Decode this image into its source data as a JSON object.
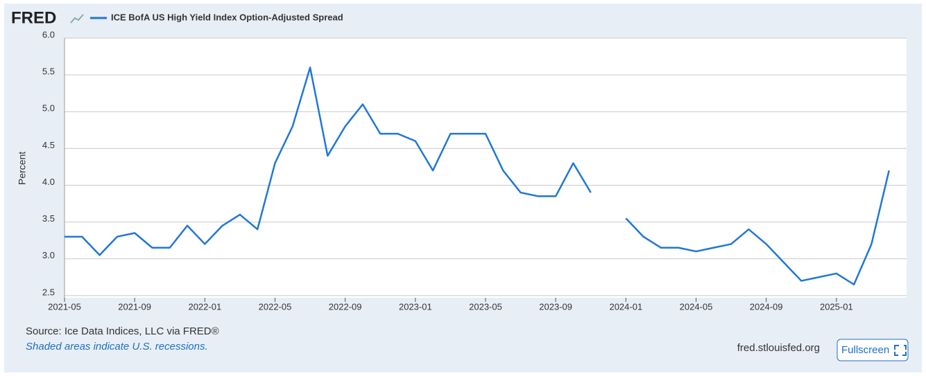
{
  "chart_data": {
    "type": "line",
    "logo": "FRED",
    "ylabel": "Percent",
    "source": "Source: Ice Data Indices, LLC via FRED®",
    "note": "Shaded areas indicate U.S. recessions.",
    "site": "fred.stlouisfed.org",
    "button": "Fullscreen",
    "x": [
      "2021-05",
      "2021-06",
      "2021-07",
      "2021-08",
      "2021-09",
      "2021-10",
      "2021-11",
      "2021-12",
      "2022-01",
      "2022-02",
      "2022-03",
      "2022-04",
      "2022-05",
      "2022-06",
      "2022-07",
      "2022-08",
      "2022-09",
      "2022-10",
      "2022-11",
      "2022-12",
      "2023-01",
      "2023-02",
      "2023-03",
      "2023-04",
      "2023-05",
      "2023-06",
      "2023-07",
      "2023-08",
      "2023-09",
      "2023-10",
      "2023-11",
      "2023-12",
      "2024-01",
      "2024-02",
      "2024-03",
      "2024-04",
      "2024-05",
      "2024-06",
      "2024-07",
      "2024-08",
      "2024-09",
      "2024-10",
      "2024-11",
      "2024-12",
      "2025-01",
      "2025-02",
      "2025-03",
      "2025-04"
    ],
    "series": [
      {
        "name": "ICE BofA US High Yield Index Option-Adjusted Spread",
        "color": "#1f76d9",
        "values": [
          3.3,
          3.3,
          3.05,
          3.3,
          3.35,
          3.15,
          3.15,
          3.45,
          3.2,
          3.45,
          3.6,
          3.4,
          4.3,
          4.8,
          5.6,
          4.4,
          4.8,
          5.1,
          4.7,
          4.7,
          4.6,
          4.2,
          4.7,
          4.7,
          4.7,
          4.2,
          3.9,
          3.85,
          3.85,
          4.3,
          3.9,
          null,
          3.55,
          3.3,
          3.15,
          3.15,
          3.1,
          3.15,
          3.2,
          3.4,
          3.2,
          2.95,
          2.7,
          2.75,
          2.8,
          2.65,
          3.2,
          4.2
        ]
      }
    ],
    "xlim": [
      "2021-05",
      "2025-05"
    ],
    "xticks": [
      "2021-05",
      "2021-09",
      "2022-01",
      "2022-05",
      "2022-09",
      "2023-01",
      "2023-05",
      "2023-09",
      "2024-01",
      "2024-05",
      "2024-09",
      "2025-01"
    ],
    "ylim": [
      2.47,
      6.0
    ],
    "yticks": [
      2.5,
      {
        "value": 3,
        "label": "3.0"
      },
      3.5,
      {
        "value": 4,
        "label": "4.0"
      },
      4.5,
      {
        "value": 5,
        "label": "5.0"
      },
      5.5,
      {
        "value": 6,
        "label": "6.0"
      }
    ],
    "grid": true
  }
}
